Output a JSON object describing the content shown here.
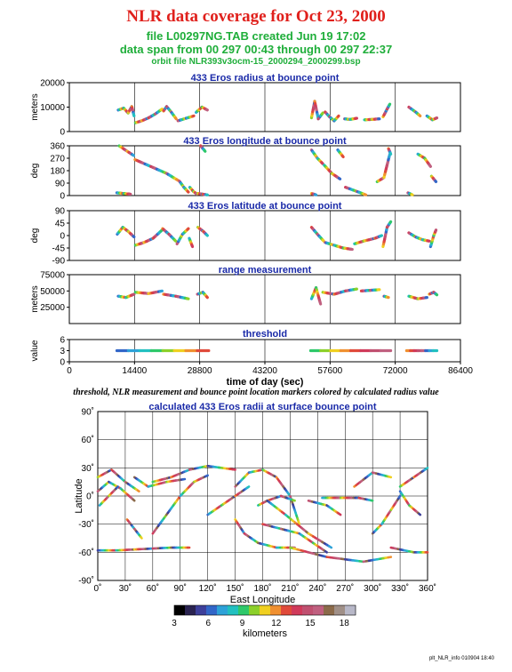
{
  "header": {
    "title": "NLR data coverage for Oct 23, 2000",
    "line1": "file L00297NG.TAB created Jun 19 17:02",
    "line2": "data span from 00 297 00:43 through 00 297 22:37",
    "line3": "orbit file NLR393v3ocm-15_2000294_2000299.bsp"
  },
  "caption": "threshold, NLR measurement and bounce point location markers colored by calculated radius value",
  "footer": "plt_NLR_info 010904 18:40",
  "colors": {
    "title": "#e0201c",
    "subtitle": "#1fae3a",
    "panel_title": "#1a2aa8",
    "colorbar": [
      "#000000",
      "#2a2350",
      "#3d3f9a",
      "#3266c8",
      "#2ea2d8",
      "#22c0c0",
      "#2ec86a",
      "#8cd02a",
      "#f0d020",
      "#f09030",
      "#e04a3a",
      "#d03a5a",
      "#c05070",
      "#c06080",
      "#8b6a4a",
      "#a09088",
      "#b8b8c8"
    ]
  },
  "chart_data": [
    {
      "type": "scatter",
      "title": "433 Eros radius at bounce point",
      "ylabel": "meters",
      "ylim": [
        0,
        25000
      ],
      "yticks": [
        "0",
        "10000",
        "20000"
      ],
      "xlim": [
        0,
        86400
      ],
      "vlines": [
        14400,
        28800,
        43200,
        57600,
        72000
      ],
      "segments": [
        {
          "x": [
            10800,
            12000,
            13000,
            13800,
            14300
          ],
          "y": [
            11000,
            12000,
            9500,
            12800,
            8000
          ]
        },
        {
          "x": [
            14600,
            16000,
            17500,
            19000,
            20500
          ],
          "y": [
            4500,
            5500,
            7000,
            9000,
            11500
          ]
        },
        {
          "x": [
            20800,
            21500,
            22500,
            23600
          ],
          "y": [
            10500,
            12800,
            10000,
            6500
          ]
        },
        {
          "x": [
            24000,
            25800,
            27500
          ],
          "y": [
            5500,
            6800,
            8000
          ]
        },
        {
          "x": [
            28000,
            29300,
            30500
          ],
          "y": [
            9800,
            12500,
            11000
          ]
        },
        {
          "x": [
            53500,
            54200,
            55000,
            56000
          ],
          "y": [
            7000,
            15500,
            6500,
            9500
          ]
        },
        {
          "x": [
            56500,
            57500,
            58500,
            59500
          ],
          "y": [
            10000,
            7500,
            5500,
            8000
          ]
        },
        {
          "x": [
            60800,
            62000,
            63500
          ],
          "y": [
            6500,
            6200,
            6800
          ]
        },
        {
          "x": [
            65200,
            66800,
            68500
          ],
          "y": [
            6000,
            6200,
            6500
          ]
        },
        {
          "x": [
            69300,
            70200,
            70800
          ],
          "y": [
            7500,
            11500,
            14000
          ]
        },
        {
          "x": [
            75000,
            76500,
            77500
          ],
          "y": [
            12500,
            10000,
            8000
          ]
        },
        {
          "x": [
            79000,
            80200,
            81200
          ],
          "y": [
            8000,
            6000,
            7000
          ]
        }
      ]
    },
    {
      "type": "scatter",
      "title": "433 Eros longitude at bounce point",
      "ylabel": "deg",
      "ylim": [
        0,
        360
      ],
      "yticks": [
        "0",
        "90",
        "180",
        "270",
        "360"
      ],
      "xlim": [
        0,
        86400
      ],
      "vlines": [
        14400,
        28800,
        43200,
        57600,
        72000
      ],
      "segments": [
        {
          "x": [
            10500,
            12000,
            13500
          ],
          "y": [
            20,
            15,
            10
          ]
        },
        {
          "x": [
            11000,
            12800,
            14200
          ],
          "y": [
            360,
            320,
            290
          ]
        },
        {
          "x": [
            14500,
            18000,
            21500,
            24000
          ],
          "y": [
            260,
            210,
            160,
            110
          ]
        },
        {
          "x": [
            24300,
            25300,
            26300
          ],
          "y": [
            105,
            60,
            25
          ]
        },
        {
          "x": [
            26600,
            27400,
            28200
          ],
          "y": [
            60,
            30,
            10
          ]
        },
        {
          "x": [
            28400,
            29500,
            30500
          ],
          "y": [
            15,
            10,
            5
          ]
        },
        {
          "x": [
            29000,
            30000
          ],
          "y": [
            360,
            320
          ]
        },
        {
          "x": [
            53500,
            54800,
            56000
          ],
          "y": [
            330,
            270,
            230
          ]
        },
        {
          "x": [
            56300,
            58000,
            59800
          ],
          "y": [
            220,
            160,
            120
          ]
        },
        {
          "x": [
            53500,
            54500
          ],
          "y": [
            15,
            5
          ]
        },
        {
          "x": [
            61000,
            63500,
            65500
          ],
          "y": [
            60,
            30,
            5
          ]
        },
        {
          "x": [
            59300,
            60500
          ],
          "y": [
            330,
            280
          ]
        },
        {
          "x": [
            68000,
            69500,
            70800
          ],
          "y": [
            100,
            130,
            300
          ]
        },
        {
          "x": [
            70500,
            71000
          ],
          "y": [
            340,
            300
          ]
        },
        {
          "x": [
            74800,
            75800
          ],
          "y": [
            20,
            5
          ]
        },
        {
          "x": [
            77000,
            78500,
            79800
          ],
          "y": [
            300,
            270,
            210
          ]
        },
        {
          "x": [
            80000,
            81000
          ],
          "y": [
            140,
            100
          ]
        }
      ]
    },
    {
      "type": "scatter",
      "title": "433 Eros latitude at bounce point",
      "ylabel": "deg",
      "ylim": [
        -90,
        90
      ],
      "yticks": [
        "-90",
        "-45",
        "0",
        "45",
        "90"
      ],
      "xlim": [
        0,
        86400
      ],
      "vlines": [
        14400,
        28800,
        43200,
        57600,
        72000
      ],
      "segments": [
        {
          "x": [
            10600,
            11800,
            13000,
            14300
          ],
          "y": [
            5,
            30,
            15,
            -5
          ]
        },
        {
          "x": [
            14600,
            16500,
            18500,
            20500
          ],
          "y": [
            -35,
            -25,
            -10,
            20
          ]
        },
        {
          "x": [
            20600,
            22000,
            23500
          ],
          "y": [
            25,
            5,
            -20
          ]
        },
        {
          "x": [
            23800,
            25000,
            26300
          ],
          "y": [
            -30,
            5,
            25
          ]
        },
        {
          "x": [
            26500,
            27200
          ],
          "y": [
            -10,
            -40
          ]
        },
        {
          "x": [
            28400,
            29600,
            30500
          ],
          "y": [
            30,
            15,
            0
          ]
        },
        {
          "x": [
            53500,
            54800,
            56200
          ],
          "y": [
            30,
            5,
            -20
          ]
        },
        {
          "x": [
            56500,
            58500,
            60500,
            62500
          ],
          "y": [
            -25,
            -35,
            -45,
            -50
          ]
        },
        {
          "x": [
            63000,
            65000,
            67500,
            69000
          ],
          "y": [
            -30,
            -20,
            -10,
            0
          ]
        },
        {
          "x": [
            69300,
            70200,
            71000
          ],
          "y": [
            -40,
            30,
            50
          ]
        },
        {
          "x": [
            75000,
            76500,
            78000,
            79500
          ],
          "y": [
            10,
            -5,
            -15,
            -20
          ]
        },
        {
          "x": [
            79800,
            80500,
            81000
          ],
          "y": [
            -40,
            0,
            20
          ]
        }
      ]
    },
    {
      "type": "scatter",
      "title": "range measurement",
      "ylabel": "meters",
      "ylim": [
        0,
        75000
      ],
      "yticks": [
        "25000",
        "50000",
        "75000"
      ],
      "xlim": [
        0,
        86400
      ],
      "vlines": [
        14400,
        28800,
        43200,
        57600,
        72000
      ],
      "segments": [
        {
          "x": [
            10800,
            12500,
            14300
          ],
          "y": [
            42000,
            40000,
            45000
          ]
        },
        {
          "x": [
            14600,
            17500,
            20500
          ],
          "y": [
            48000,
            46000,
            50000
          ]
        },
        {
          "x": [
            20800,
            23500,
            26300
          ],
          "y": [
            45000,
            42000,
            38000
          ]
        },
        {
          "x": [
            28300,
            29500,
            30500
          ],
          "y": [
            45000,
            48000,
            40000
          ]
        },
        {
          "x": [
            53500,
            54500,
            55500
          ],
          "y": [
            38000,
            55000,
            30000
          ]
        },
        {
          "x": [
            56000,
            58500,
            61000,
            63500
          ],
          "y": [
            48000,
            45000,
            50000,
            53000
          ]
        },
        {
          "x": [
            64500,
            66500,
            68500
          ],
          "y": [
            50000,
            51000,
            52000
          ]
        },
        {
          "x": [
            69500,
            70500
          ],
          "y": [
            42000,
            40000
          ]
        },
        {
          "x": [
            75000,
            77000,
            79000
          ],
          "y": [
            42000,
            38000,
            40000
          ]
        },
        {
          "x": [
            79500,
            80500,
            81200
          ],
          "y": [
            45000,
            48000,
            44000
          ]
        }
      ]
    },
    {
      "type": "scatter",
      "title": "threshold",
      "ylabel": "value",
      "ylim": [
        0,
        6
      ],
      "yticks": [
        "0",
        "3",
        "6"
      ],
      "xlim": [
        0,
        86400
      ],
      "xticks": [
        "0",
        "14400",
        "28800",
        "43200",
        "57600",
        "72000",
        "86400"
      ],
      "xlabel": "time of day (sec)",
      "vlines": [
        14400,
        28800,
        43200,
        57600,
        72000
      ],
      "segments": [
        {
          "x": [
            10500,
            30800
          ],
          "y": [
            3,
            3
          ]
        },
        {
          "x": [
            53300,
            71000
          ],
          "y": [
            3,
            3
          ]
        },
        {
          "x": [
            74500,
            81200
          ],
          "y": [
            3,
            3
          ]
        }
      ]
    },
    {
      "type": "scatter",
      "title": "calculated 433 Eros radii at surface bounce point",
      "xlabel": "East Longitude",
      "ylabel": "Latitude",
      "xlim": [
        0,
        360
      ],
      "ylim": [
        -90,
        90
      ],
      "xticks": [
        "0˚",
        "30˚",
        "60˚",
        "90˚",
        "120˚",
        "150˚",
        "180˚",
        "210˚",
        "240˚",
        "270˚",
        "300˚",
        "330˚",
        "360˚"
      ],
      "yticks": [
        "-90˚",
        "-60˚",
        "-30˚",
        "0˚",
        "30˚",
        "60˚",
        "90˚"
      ],
      "colorbar": {
        "label": "kilometers",
        "ticks": [
          "3",
          "6",
          "9",
          "12",
          "15",
          "18"
        ],
        "range": [
          3,
          19
        ]
      },
      "segments": [
        {
          "x": [
            0,
            20,
            40,
            60,
            80,
            100
          ],
          "y": [
            -58,
            -58,
            -57,
            -56,
            -55,
            -55
          ]
        },
        {
          "x": [
            0,
            15,
            30,
            45
          ],
          "y": [
            20,
            28,
            15,
            5
          ]
        },
        {
          "x": [
            0,
            12,
            25,
            40
          ],
          "y": [
            5,
            15,
            8,
            -5
          ]
        },
        {
          "x": [
            2,
            12,
            22
          ],
          "y": [
            -10,
            0,
            10
          ]
        },
        {
          "x": [
            32,
            40,
            48
          ],
          "y": [
            -25,
            -35,
            -45
          ]
        },
        {
          "x": [
            40,
            55,
            75,
            95
          ],
          "y": [
            20,
            10,
            15,
            18
          ]
        },
        {
          "x": [
            60,
            80,
            100,
            120,
            150
          ],
          "y": [
            15,
            20,
            28,
            32,
            28
          ]
        },
        {
          "x": [
            60,
            75,
            90,
            105,
            120
          ],
          "y": [
            -40,
            -20,
            0,
            15,
            22
          ]
        },
        {
          "x": [
            120,
            135,
            150,
            165
          ],
          "y": [
            -20,
            -10,
            0,
            10
          ]
        },
        {
          "x": [
            150,
            160,
            175,
            195,
            215
          ],
          "y": [
            -25,
            -40,
            -50,
            -55,
            -55
          ]
        },
        {
          "x": [
            150,
            165,
            180,
            195,
            210,
            220
          ],
          "y": [
            10,
            25,
            28,
            20,
            0,
            -30
          ]
        },
        {
          "x": [
            175,
            185,
            200,
            215
          ],
          "y": [
            -10,
            -5,
            0,
            -5
          ]
        },
        {
          "x": [
            180,
            200,
            220,
            235,
            250
          ],
          "y": [
            -30,
            -35,
            -40,
            -50,
            -60
          ]
        },
        {
          "x": [
            185,
            205,
            230,
            255
          ],
          "y": [
            -5,
            -20,
            -40,
            -55
          ]
        },
        {
          "x": [
            210,
            250,
            290,
            320
          ],
          "y": [
            -55,
            -65,
            -70,
            -65
          ]
        },
        {
          "x": [
            230,
            250,
            265
          ],
          "y": [
            -5,
            -10,
            -20
          ]
        },
        {
          "x": [
            245,
            265,
            285,
            300
          ],
          "y": [
            -2,
            -2,
            -2,
            -5
          ]
        },
        {
          "x": [
            280,
            300,
            320
          ],
          "y": [
            10,
            25,
            20
          ]
        },
        {
          "x": [
            300,
            310,
            320,
            330
          ],
          "y": [
            -40,
            -30,
            -15,
            0
          ]
        },
        {
          "x": [
            330,
            345,
            360
          ],
          "y": [
            10,
            20,
            30
          ]
        },
        {
          "x": [
            320,
            345,
            360
          ],
          "y": [
            -55,
            -60,
            -60
          ]
        },
        {
          "x": [
            330,
            340,
            352
          ],
          "y": [
            5,
            -10,
            -20
          ]
        }
      ]
    }
  ]
}
